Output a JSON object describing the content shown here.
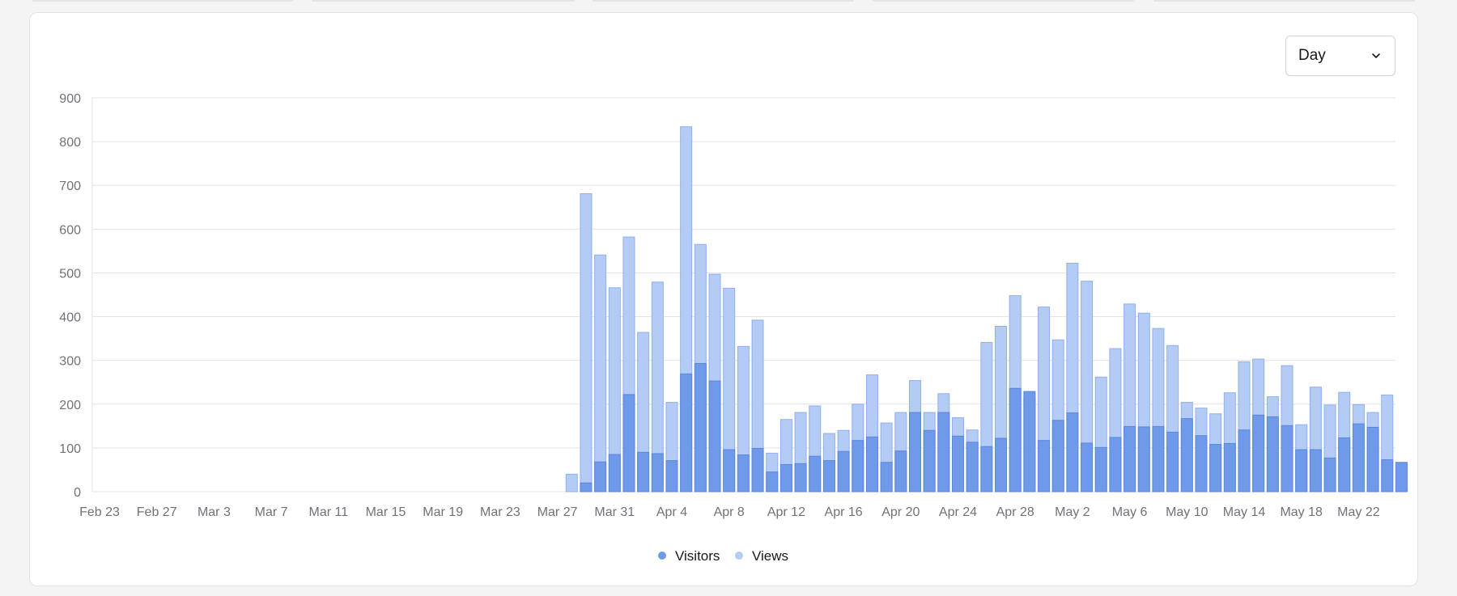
{
  "controls": {
    "interval_select": {
      "value": "Day",
      "icon": "chevron-down-icon"
    }
  },
  "colors": {
    "visitors": "#6f9ae9",
    "visitors_stroke": "#5a86dc",
    "views": "#b3cbf5",
    "views_stroke": "#8fb0ee",
    "grid": "#e4e4e7",
    "axis_text": "#71717a"
  },
  "chart_data": {
    "type": "bar",
    "stacked": false,
    "overlapping": true,
    "grid": true,
    "legend_placement": "bottom-center",
    "ylim": [
      0,
      900
    ],
    "yticks": [
      0,
      100,
      200,
      300,
      400,
      500,
      600,
      700,
      800,
      900
    ],
    "xlim": [
      "2025-02-23",
      "2025-05-25"
    ],
    "x_tick_labels": [
      "Feb 23",
      "Feb 27",
      "Mar 3",
      "Mar 7",
      "Mar 11",
      "Mar 15",
      "Mar 19",
      "Mar 23",
      "Mar 27",
      "Mar 31",
      "Apr 4",
      "Apr 8",
      "Apr 12",
      "Apr 16",
      "Apr 20",
      "Apr 24",
      "Apr 28",
      "May 2",
      "May 6",
      "May 10",
      "May 14",
      "May 18",
      "May 22"
    ],
    "x_tick_dates": [
      "2025-02-23",
      "2025-02-27",
      "2025-03-03",
      "2025-03-07",
      "2025-03-11",
      "2025-03-15",
      "2025-03-19",
      "2025-03-23",
      "2025-03-27",
      "2025-03-31",
      "2025-04-04",
      "2025-04-08",
      "2025-04-12",
      "2025-04-16",
      "2025-04-20",
      "2025-04-24",
      "2025-04-28",
      "2025-05-02",
      "2025-05-06",
      "2025-05-10",
      "2025-05-14",
      "2025-05-18",
      "2025-05-22"
    ],
    "x": [
      "2025-03-28",
      "2025-03-29",
      "2025-03-30",
      "2025-03-31",
      "2025-04-01",
      "2025-04-02",
      "2025-04-03",
      "2025-04-04",
      "2025-04-05",
      "2025-04-06",
      "2025-04-07",
      "2025-04-08",
      "2025-04-09",
      "2025-04-10",
      "2025-04-11",
      "2025-04-12",
      "2025-04-13",
      "2025-04-14",
      "2025-04-15",
      "2025-04-16",
      "2025-04-17",
      "2025-04-18",
      "2025-04-19",
      "2025-04-20",
      "2025-04-21",
      "2025-04-22",
      "2025-04-23",
      "2025-04-24",
      "2025-04-25",
      "2025-04-26",
      "2025-04-27",
      "2025-04-28",
      "2025-04-29",
      "2025-04-30",
      "2025-05-01",
      "2025-05-02",
      "2025-05-03",
      "2025-05-04",
      "2025-05-05",
      "2025-05-06",
      "2025-05-07",
      "2025-05-08",
      "2025-05-09",
      "2025-05-10",
      "2025-05-11",
      "2025-05-12",
      "2025-05-13",
      "2025-05-14",
      "2025-05-15",
      "2025-05-16",
      "2025-05-17",
      "2025-05-18",
      "2025-05-19",
      "2025-05-20",
      "2025-05-21",
      "2025-05-22",
      "2025-05-23",
      "2025-05-24",
      "2025-05-25"
    ],
    "series": [
      {
        "name": "Visitors",
        "values": [
          0,
          20,
          68,
          85,
          222,
          90,
          87,
          71,
          269,
          293,
          253,
          96,
          84,
          99,
          45,
          62,
          64,
          81,
          71,
          92,
          117,
          125,
          67,
          93,
          181,
          140,
          181,
          127,
          113,
          103,
          122,
          236,
          229,
          117,
          163,
          180,
          111,
          101,
          124,
          149,
          148,
          149,
          136,
          167,
          128,
          108,
          110,
          141,
          175,
          171,
          151,
          96,
          96,
          77,
          123,
          155,
          147,
          73,
          67
        ]
      },
      {
        "name": "Views",
        "values": [
          40,
          681,
          541,
          466,
          582,
          364,
          479,
          204,
          834,
          565,
          497,
          465,
          332,
          392,
          88,
          165,
          181,
          196,
          133,
          140,
          200,
          267,
          157,
          181,
          254,
          181,
          224,
          169,
          141,
          341,
          378,
          448,
          215,
          422,
          347,
          522,
          481,
          262,
          327,
          429,
          408,
          373,
          334,
          204,
          191,
          178,
          226,
          297,
          303,
          217,
          288,
          153,
          239,
          198,
          227,
          199,
          181,
          221,
          0
        ]
      }
    ]
  }
}
